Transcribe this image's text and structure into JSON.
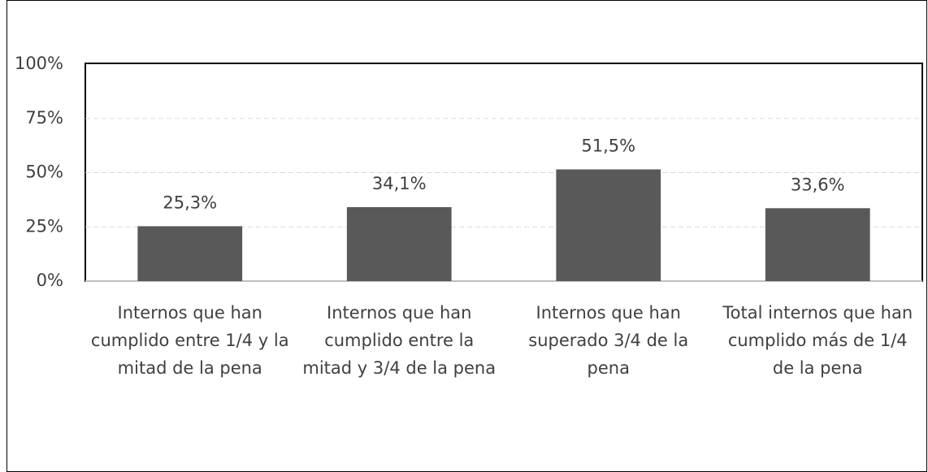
{
  "chart_data": {
    "type": "bar",
    "categories": [
      "Internos que han cumplido entre 1/4 y la mitad de la pena",
      "Internos que han cumplido entre la mitad y 3/4 de la pena",
      "Internos que han superado 3/4 de la pena",
      "Total internos que han cumplido más de 1/4 de la pena"
    ],
    "values": [
      25.3,
      34.1,
      51.5,
      33.6
    ],
    "value_labels": [
      "25,3%",
      "34,1%",
      "51,5%",
      "33,6%"
    ],
    "color": "#595959",
    "ylim": [
      0,
      100
    ],
    "yticks": [
      {
        "value": 0,
        "label": "0%"
      },
      {
        "value": 25,
        "label": "25%"
      },
      {
        "value": 50,
        "label": "50%"
      },
      {
        "value": 75,
        "label": "75%"
      },
      {
        "value": 100,
        "label": "100%"
      }
    ],
    "grid": true
  }
}
